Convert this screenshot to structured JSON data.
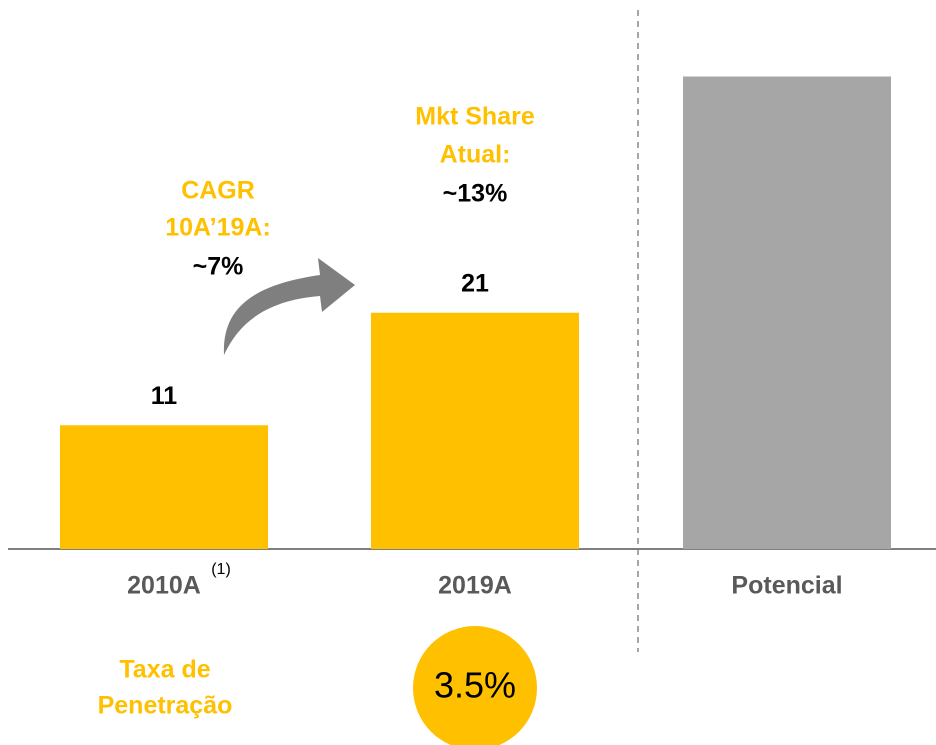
{
  "chart_data": {
    "type": "bar",
    "categories": [
      "2010A",
      "2019A",
      "Potencial"
    ],
    "values": [
      11,
      21,
      42
    ],
    "value_labels": [
      "11",
      "21",
      null
    ],
    "colors": [
      "#FFC000",
      "#FFC000",
      "#A6A6A6"
    ],
    "footnote": "(1)",
    "annotations": {
      "cagr_title": [
        "CAGR",
        "10A’19A:"
      ],
      "cagr_value": "~7%",
      "share_title": [
        "Mkt Share",
        "Atual:"
      ],
      "share_value": "~13%",
      "penetration_label": [
        "Taxa de",
        "Penetração"
      ],
      "penetration_value": "3.5%"
    }
  }
}
